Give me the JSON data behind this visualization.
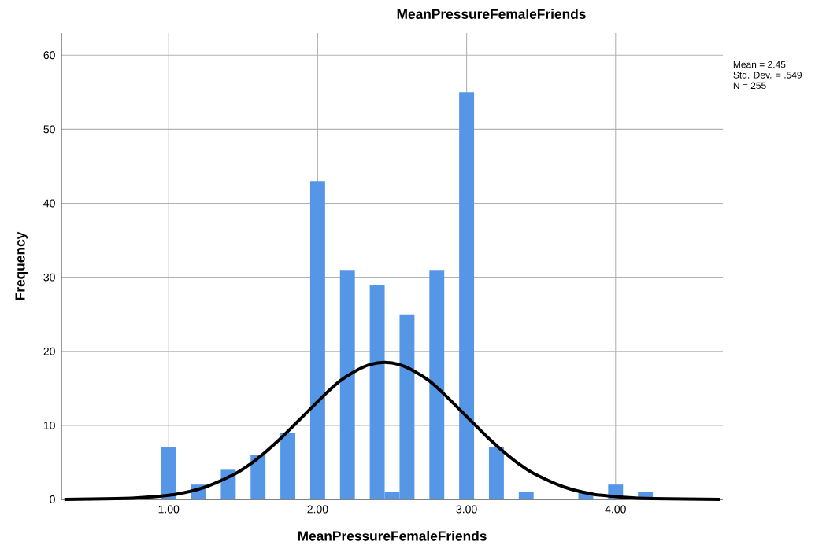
{
  "chart_data": {
    "type": "histogram",
    "title": "MeanPressureFemaleFriends",
    "xlabel": "MeanPressureFemaleFriends",
    "ylabel": "Frequency",
    "bins": [
      0.95,
      1.05,
      1.15,
      1.25,
      1.35,
      1.45,
      1.55,
      1.65,
      1.75,
      1.85,
      1.95,
      2.05,
      2.15,
      2.25,
      2.35,
      2.45,
      2.55,
      2.65,
      2.75,
      2.85,
      2.95,
      3.05,
      3.15,
      3.25,
      3.35,
      3.45,
      3.55,
      3.65,
      3.75,
      3.85,
      3.95,
      4.05,
      4.15,
      4.25
    ],
    "series": [
      {
        "color": "#5596e6",
        "values": [
          7,
          0,
          2,
          0,
          4,
          0,
          6,
          0,
          9,
          0,
          43,
          0,
          31,
          0,
          29,
          1,
          25,
          0,
          31,
          0,
          55,
          0,
          7,
          0,
          1,
          0,
          0,
          0,
          1,
          0,
          2,
          0,
          1
        ]
      },
      {
        "type": "line",
        "color": "#000000",
        "x": [
          0.3,
          0.65,
          0.85,
          1.05,
          1.25,
          1.45,
          1.55,
          1.65,
          1.75,
          1.85,
          1.95,
          2.05,
          2.15,
          2.25,
          2.35,
          2.45,
          2.55,
          2.65,
          2.75,
          2.85,
          2.95,
          3.05,
          3.15,
          3.25,
          3.35,
          3.45,
          3.65,
          3.85,
          4.05,
          4.25,
          4.7
        ],
        "values": [
          0.0,
          0.1,
          0.3,
          0.7,
          1.7,
          3.5,
          4.8,
          6.4,
          8.2,
          10.2,
          12.2,
          14.2,
          16.0,
          17.3,
          18.2,
          18.5,
          18.2,
          17.3,
          16.0,
          14.2,
          12.2,
          10.2,
          8.2,
          6.4,
          4.8,
          3.5,
          1.7,
          0.7,
          0.3,
          0.1,
          0.0
        ]
      }
    ],
    "xlim": [
      0.28,
      4.72
    ],
    "ylim": [
      0,
      63
    ],
    "xticks": [
      {
        "value": 1,
        "label": "1.00"
      },
      {
        "value": 2,
        "label": "2.00"
      },
      {
        "value": 3,
        "label": "3.00"
      },
      {
        "value": 4,
        "label": "4.00"
      }
    ],
    "yticks": [
      0,
      10,
      20,
      30,
      40,
      50,
      60
    ],
    "grid": true,
    "annotations": [
      "Mean = 2.45",
      "Std. Dev. = .549",
      "N = 255"
    ]
  }
}
